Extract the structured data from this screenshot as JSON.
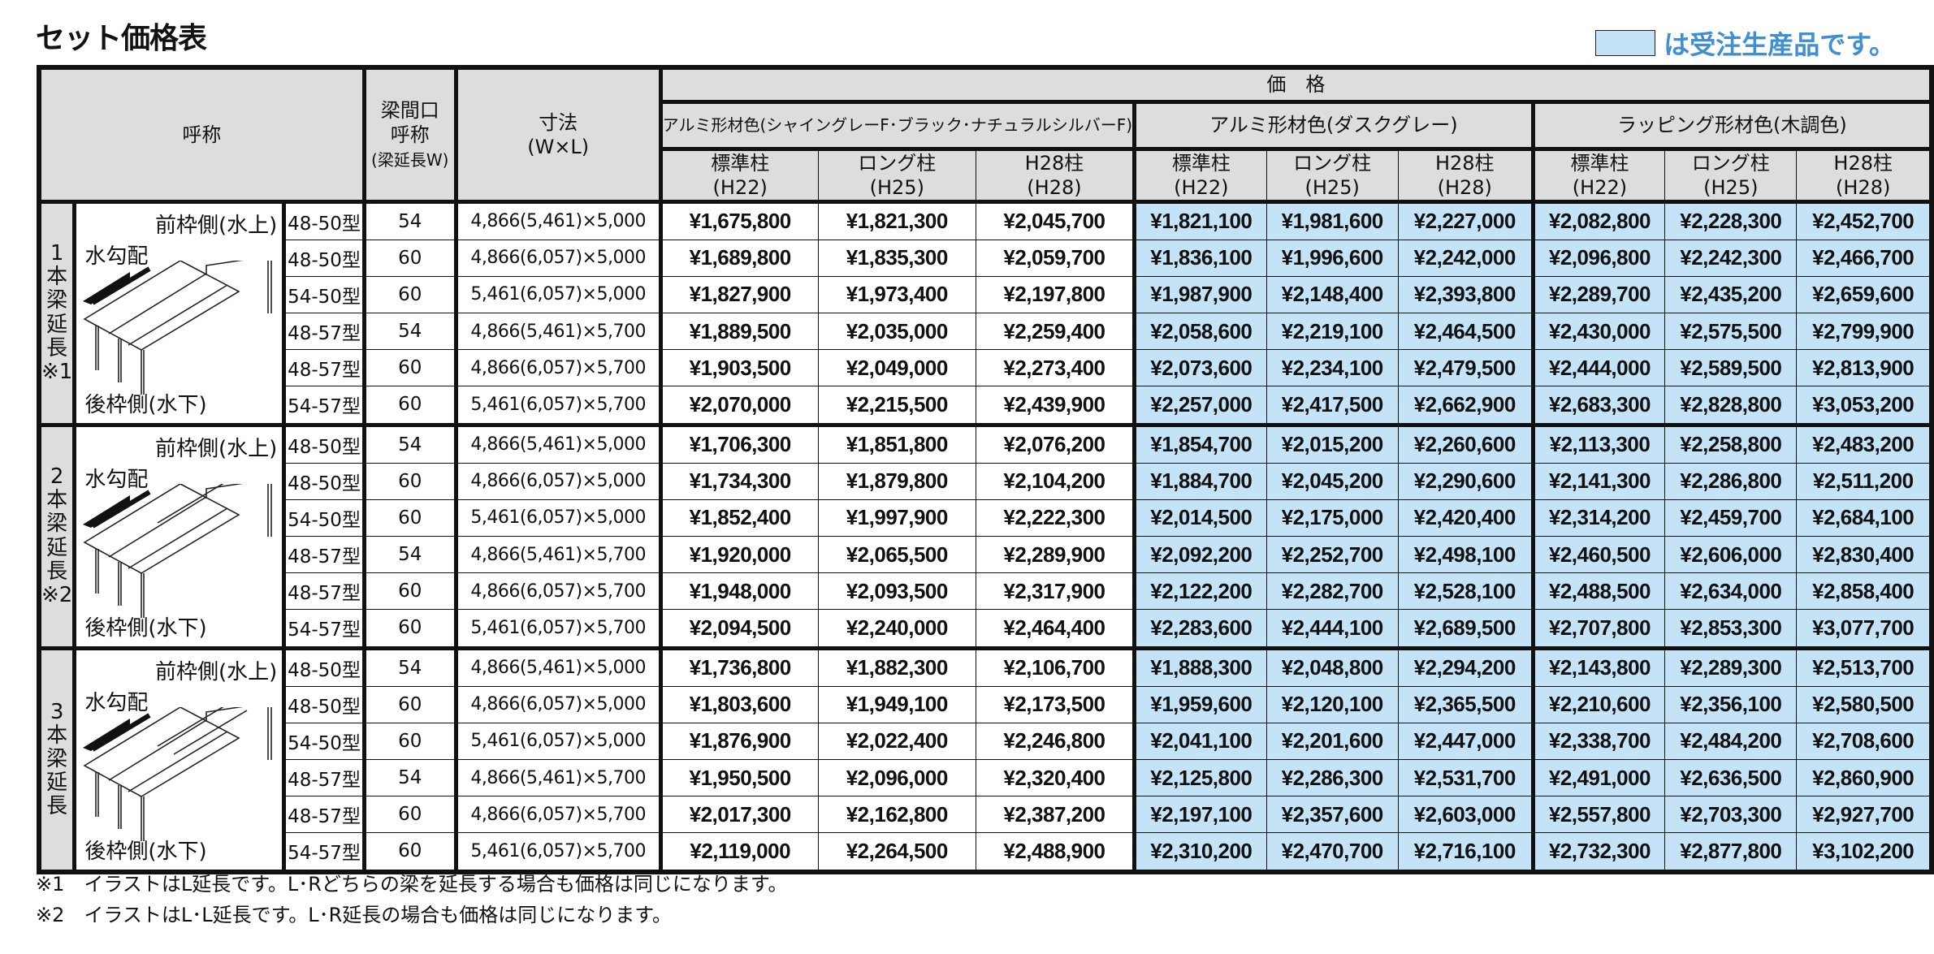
{
  "title": "セット価格表",
  "legend": {
    "text": "は受注生産品です。",
    "swatch_color": "#c5e3f6"
  },
  "header": {
    "name": "呼称",
    "beam": [
      "梁間口",
      "呼称",
      "(梁延長W)"
    ],
    "size": [
      "寸法",
      "(W×L)"
    ],
    "price": "価　格",
    "groups": [
      "アルミ形材色(シャイングレーF･ブラック･ナチュラルシルバーF)",
      "アルミ形材色(ダスクグレー)",
      "ラッピング形材色(木調色)"
    ],
    "posts": [
      [
        "標準柱",
        "(H22)"
      ],
      [
        "ロング柱",
        "(H25)"
      ],
      [
        "H28柱",
        "(H28)"
      ]
    ]
  },
  "illustration_labels": {
    "front": "前枠側(水上)",
    "slope": "水勾配",
    "back": "後枠側(水下)"
  },
  "sections": [
    {
      "label": "1本梁延長※1",
      "rows": [
        {
          "model": "48-50型",
          "beam": "54",
          "size": "4,866(5,461)×5,000",
          "prices": [
            "¥1,675,800",
            "¥1,821,300",
            "¥2,045,700",
            "¥1,821,100",
            "¥1,981,600",
            "¥2,227,000",
            "¥2,082,800",
            "¥2,228,300",
            "¥2,452,700"
          ]
        },
        {
          "model": "48-50型",
          "beam": "60",
          "size": "4,866(6,057)×5,000",
          "prices": [
            "¥1,689,800",
            "¥1,835,300",
            "¥2,059,700",
            "¥1,836,100",
            "¥1,996,600",
            "¥2,242,000",
            "¥2,096,800",
            "¥2,242,300",
            "¥2,466,700"
          ]
        },
        {
          "model": "54-50型",
          "beam": "60",
          "size": "5,461(6,057)×5,000",
          "prices": [
            "¥1,827,900",
            "¥1,973,400",
            "¥2,197,800",
            "¥1,987,900",
            "¥2,148,400",
            "¥2,393,800",
            "¥2,289,700",
            "¥2,435,200",
            "¥2,659,600"
          ]
        },
        {
          "model": "48-57型",
          "beam": "54",
          "size": "4,866(5,461)×5,700",
          "prices": [
            "¥1,889,500",
            "¥2,035,000",
            "¥2,259,400",
            "¥2,058,600",
            "¥2,219,100",
            "¥2,464,500",
            "¥2,430,000",
            "¥2,575,500",
            "¥2,799,900"
          ]
        },
        {
          "model": "48-57型",
          "beam": "60",
          "size": "4,866(6,057)×5,700",
          "prices": [
            "¥1,903,500",
            "¥2,049,000",
            "¥2,273,400",
            "¥2,073,600",
            "¥2,234,100",
            "¥2,479,500",
            "¥2,444,000",
            "¥2,589,500",
            "¥2,813,900"
          ]
        },
        {
          "model": "54-57型",
          "beam": "60",
          "size": "5,461(6,057)×5,700",
          "prices": [
            "¥2,070,000",
            "¥2,215,500",
            "¥2,439,900",
            "¥2,257,000",
            "¥2,417,500",
            "¥2,662,900",
            "¥2,683,300",
            "¥2,828,800",
            "¥3,053,200"
          ]
        }
      ]
    },
    {
      "label": "2本梁延長※2",
      "rows": [
        {
          "model": "48-50型",
          "beam": "54",
          "size": "4,866(5,461)×5,000",
          "prices": [
            "¥1,706,300",
            "¥1,851,800",
            "¥2,076,200",
            "¥1,854,700",
            "¥2,015,200",
            "¥2,260,600",
            "¥2,113,300",
            "¥2,258,800",
            "¥2,483,200"
          ]
        },
        {
          "model": "48-50型",
          "beam": "60",
          "size": "4,866(6,057)×5,000",
          "prices": [
            "¥1,734,300",
            "¥1,879,800",
            "¥2,104,200",
            "¥1,884,700",
            "¥2,045,200",
            "¥2,290,600",
            "¥2,141,300",
            "¥2,286,800",
            "¥2,511,200"
          ]
        },
        {
          "model": "54-50型",
          "beam": "60",
          "size": "5,461(6,057)×5,000",
          "prices": [
            "¥1,852,400",
            "¥1,997,900",
            "¥2,222,300",
            "¥2,014,500",
            "¥2,175,000",
            "¥2,420,400",
            "¥2,314,200",
            "¥2,459,700",
            "¥2,684,100"
          ]
        },
        {
          "model": "48-57型",
          "beam": "54",
          "size": "4,866(5,461)×5,700",
          "prices": [
            "¥1,920,000",
            "¥2,065,500",
            "¥2,289,900",
            "¥2,092,200",
            "¥2,252,700",
            "¥2,498,100",
            "¥2,460,500",
            "¥2,606,000",
            "¥2,830,400"
          ]
        },
        {
          "model": "48-57型",
          "beam": "60",
          "size": "4,866(6,057)×5,700",
          "prices": [
            "¥1,948,000",
            "¥2,093,500",
            "¥2,317,900",
            "¥2,122,200",
            "¥2,282,700",
            "¥2,528,100",
            "¥2,488,500",
            "¥2,634,000",
            "¥2,858,400"
          ]
        },
        {
          "model": "54-57型",
          "beam": "60",
          "size": "5,461(6,057)×5,700",
          "prices": [
            "¥2,094,500",
            "¥2,240,000",
            "¥2,464,400",
            "¥2,283,600",
            "¥2,444,100",
            "¥2,689,500",
            "¥2,707,800",
            "¥2,853,300",
            "¥3,077,700"
          ]
        }
      ]
    },
    {
      "label": "3本梁延長",
      "rows": [
        {
          "model": "48-50型",
          "beam": "54",
          "size": "4,866(5,461)×5,000",
          "prices": [
            "¥1,736,800",
            "¥1,882,300",
            "¥2,106,700",
            "¥1,888,300",
            "¥2,048,800",
            "¥2,294,200",
            "¥2,143,800",
            "¥2,289,300",
            "¥2,513,700"
          ]
        },
        {
          "model": "48-50型",
          "beam": "60",
          "size": "4,866(6,057)×5,000",
          "prices": [
            "¥1,803,600",
            "¥1,949,100",
            "¥2,173,500",
            "¥1,959,600",
            "¥2,120,100",
            "¥2,365,500",
            "¥2,210,600",
            "¥2,356,100",
            "¥2,580,500"
          ]
        },
        {
          "model": "54-50型",
          "beam": "60",
          "size": "5,461(6,057)×5,000",
          "prices": [
            "¥1,876,900",
            "¥2,022,400",
            "¥2,246,800",
            "¥2,041,100",
            "¥2,201,600",
            "¥2,447,000",
            "¥2,338,700",
            "¥2,484,200",
            "¥2,708,600"
          ]
        },
        {
          "model": "48-57型",
          "beam": "54",
          "size": "4,866(5,461)×5,700",
          "prices": [
            "¥1,950,500",
            "¥2,096,000",
            "¥2,320,400",
            "¥2,125,800",
            "¥2,286,300",
            "¥2,531,700",
            "¥2,491,000",
            "¥2,636,500",
            "¥2,860,900"
          ]
        },
        {
          "model": "48-57型",
          "beam": "60",
          "size": "4,866(6,057)×5,700",
          "prices": [
            "¥2,017,300",
            "¥2,162,800",
            "¥2,387,200",
            "¥2,197,100",
            "¥2,357,600",
            "¥2,603,000",
            "¥2,557,800",
            "¥2,703,300",
            "¥2,927,700"
          ]
        },
        {
          "model": "54-57型",
          "beam": "60",
          "size": "5,461(6,057)×5,700",
          "prices": [
            "¥2,119,000",
            "¥2,264,500",
            "¥2,488,900",
            "¥2,310,200",
            "¥2,470,700",
            "¥2,716,100",
            "¥2,732,300",
            "¥2,877,800",
            "¥3,102,200"
          ]
        }
      ]
    }
  ],
  "notes": [
    "※1　イラストはL延長です。L･Rどちらの梁を延長する場合も価格は同じになります。",
    "※2　イラストはL･L延長です。L･R延長の場合も価格は同じになります。"
  ]
}
